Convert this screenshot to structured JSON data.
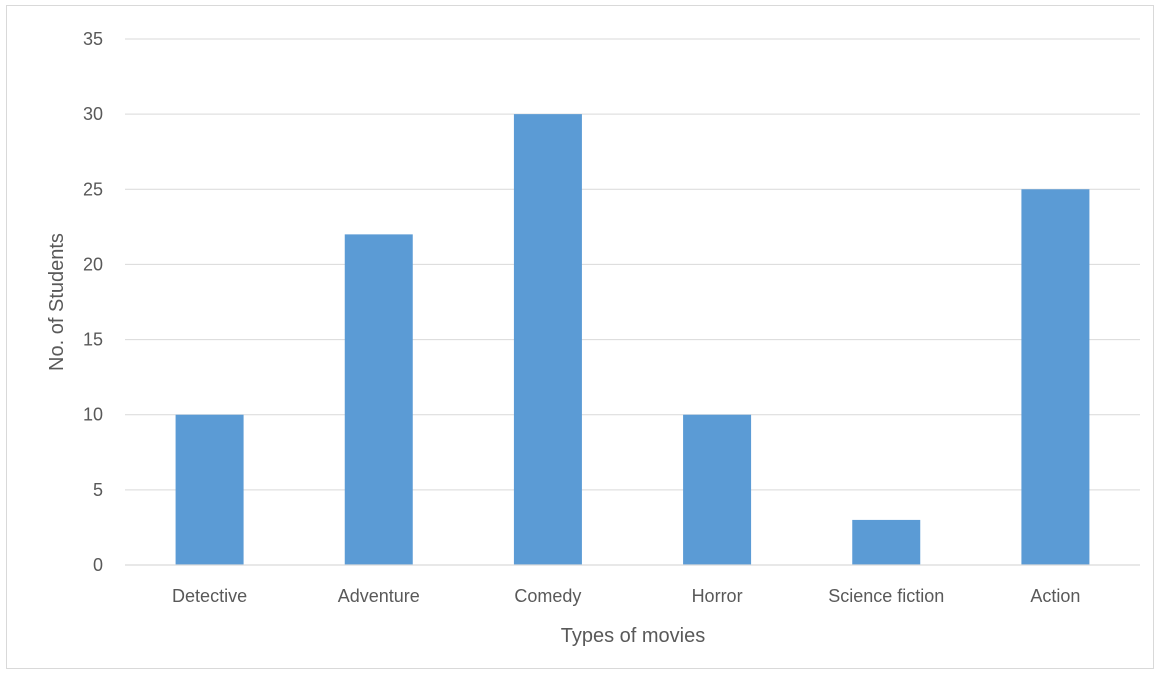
{
  "chart_data": {
    "type": "bar",
    "categories": [
      "Detective",
      "Adventure",
      "Comedy",
      "Horror",
      "Science fiction",
      "Action"
    ],
    "values": [
      10,
      22,
      30,
      10,
      3,
      25
    ],
    "xlabel": "Types of movies",
    "ylabel": "No. of Students",
    "ylim": [
      0,
      35
    ],
    "yticks": [
      0,
      5,
      10,
      15,
      20,
      25,
      30,
      35
    ],
    "grid": true,
    "legend": "none",
    "bar_color": "#5b9bd5",
    "grid_color": "#d9d9d9",
    "text_color": "#595959"
  }
}
